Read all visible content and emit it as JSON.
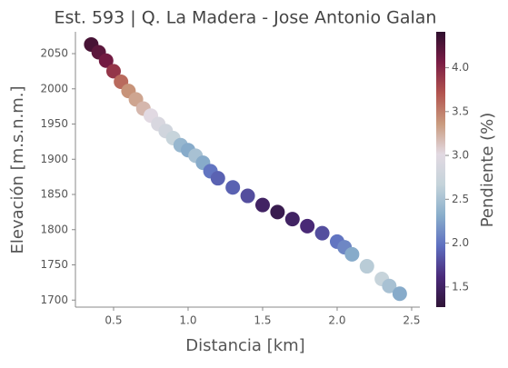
{
  "chart_data": {
    "type": "scatter",
    "title": "Est. 593 | Q. La Madera - Jose Antonio Galan",
    "xlabel": "Distancia [km]",
    "ylabel": "Elevación [m.s.n.m.]",
    "colorbar_label": "Pendiente (%)",
    "x": [
      0.35,
      0.4,
      0.45,
      0.5,
      0.55,
      0.6,
      0.65,
      0.7,
      0.75,
      0.8,
      0.85,
      0.9,
      0.95,
      1.0,
      1.05,
      1.1,
      1.15,
      1.2,
      1.3,
      1.4,
      1.5,
      1.6,
      1.7,
      1.8,
      1.9,
      2.0,
      2.05,
      2.1,
      2.2,
      2.3,
      2.35,
      2.42
    ],
    "y": [
      2063,
      2052,
      2040,
      2025,
      2010,
      1997,
      1985,
      1972,
      1962,
      1950,
      1940,
      1930,
      1920,
      1913,
      1905,
      1895,
      1883,
      1873,
      1860,
      1848,
      1835,
      1825,
      1815,
      1805,
      1795,
      1783,
      1775,
      1765,
      1748,
      1730,
      1720,
      1709
    ],
    "c": [
      4.3,
      4.2,
      4.1,
      3.9,
      3.6,
      3.4,
      3.3,
      3.2,
      3.0,
      2.9,
      2.8,
      2.7,
      2.4,
      2.3,
      2.5,
      2.3,
      2.0,
      1.9,
      1.9,
      1.8,
      1.5,
      1.4,
      1.5,
      1.6,
      1.8,
      2.0,
      2.1,
      2.3,
      2.6,
      2.7,
      2.5,
      2.3
    ],
    "xlim": [
      0.244,
      2.555
    ],
    "xticks": [
      0.5,
      {
        "value": 1,
        "label": "1.0"
      },
      1.5,
      {
        "value": 2,
        "label": "2.0"
      },
      2.5
    ],
    "ylim": [
      1690,
      2081
    ],
    "yticks": [
      1700,
      1750,
      1800,
      1850,
      1900,
      1950,
      2000,
      2050
    ],
    "clim": [
      1.27,
      4.41
    ],
    "cticks": [
      1.5,
      {
        "value": 2,
        "label": "2.0"
      },
      2.5,
      {
        "value": 3,
        "label": "3.0"
      },
      3.5,
      {
        "value": 4,
        "label": "4.0"
      }
    ],
    "colormap": [
      "#2f1436",
      "#4a2a7a",
      "#5e6fc0",
      "#89aecb",
      "#c4d3da",
      "#e2d9e2",
      "#c99a7e",
      "#b2534e",
      "#7a1d45",
      "#2f0f2e"
    ]
  }
}
